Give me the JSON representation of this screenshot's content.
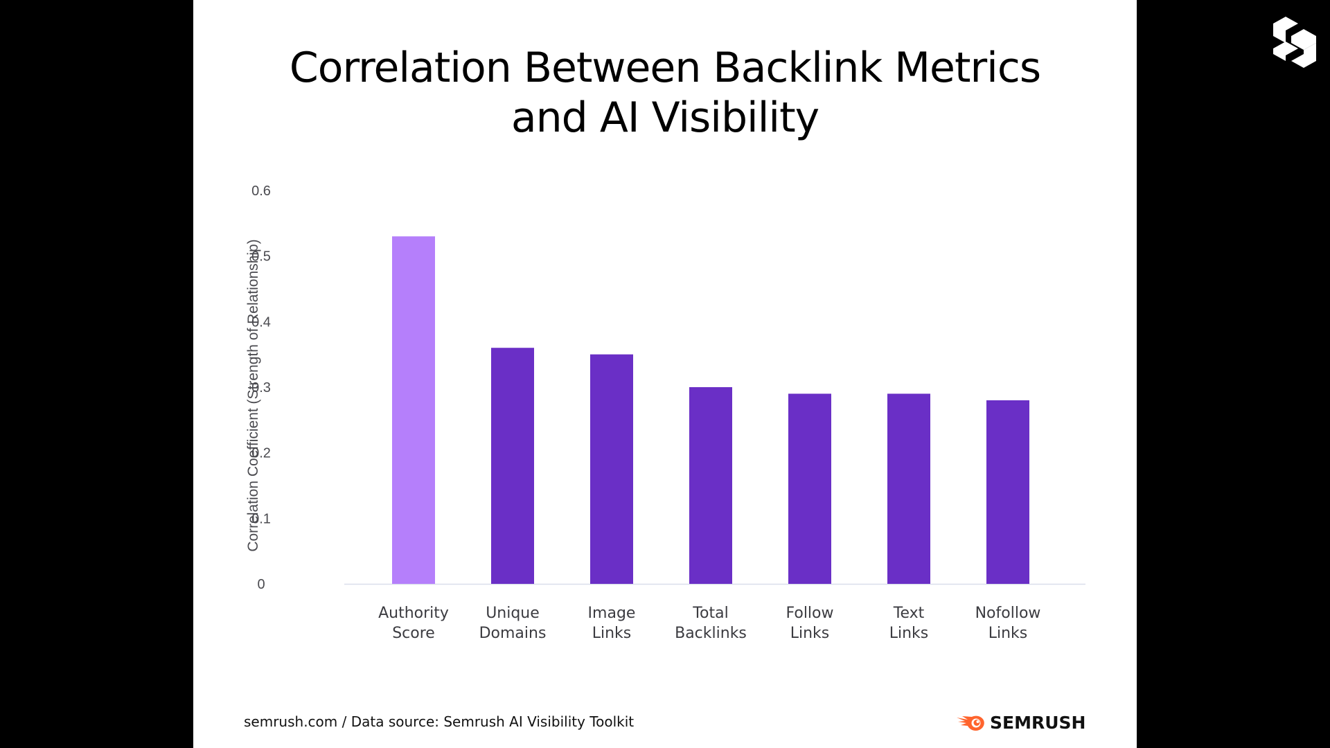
{
  "footer": {
    "source": "semrush.com / Data source: Semrush AI Visibility Toolkit",
    "brand": "SEMRUSH",
    "brand_icon": "semrush-fireball-icon"
  },
  "corner_logo": "s-cube-logo-icon",
  "colors": {
    "highlight_bar": "#B57FFB",
    "bar": "#6A2FC6",
    "brand_orange": "#FF642D",
    "axis_line": "#D9DEEA"
  },
  "chart_data": {
    "type": "bar",
    "title": "Correlation Between Backlink Metrics and AI Visibility",
    "title_lines": [
      "Correlation Between Backlink Metrics",
      "and AI Visibility"
    ],
    "xlabel": "",
    "ylabel": "Correlation Coefficient (Strength of Relationship)",
    "ylim": [
      0,
      0.6
    ],
    "yticks": [
      0,
      0.1,
      0.2,
      0.3,
      0.4,
      0.5,
      0.6
    ],
    "ytick_labels": [
      "0",
      "0.1",
      "0.2",
      "0.3",
      "0.4",
      "0.5",
      "0.6"
    ],
    "grid": false,
    "categories": [
      [
        "Authority",
        "Score"
      ],
      [
        "Unique",
        "Domains"
      ],
      [
        "Image",
        "Links"
      ],
      [
        "Total",
        "Backlinks"
      ],
      [
        "Follow",
        "Links"
      ],
      [
        "Text",
        "Links"
      ],
      [
        "Nofollow",
        "Links"
      ]
    ],
    "values": [
      0.53,
      0.36,
      0.35,
      0.3,
      0.29,
      0.29,
      0.28
    ],
    "highlighted": [
      true,
      false,
      false,
      false,
      false,
      false,
      false
    ]
  }
}
